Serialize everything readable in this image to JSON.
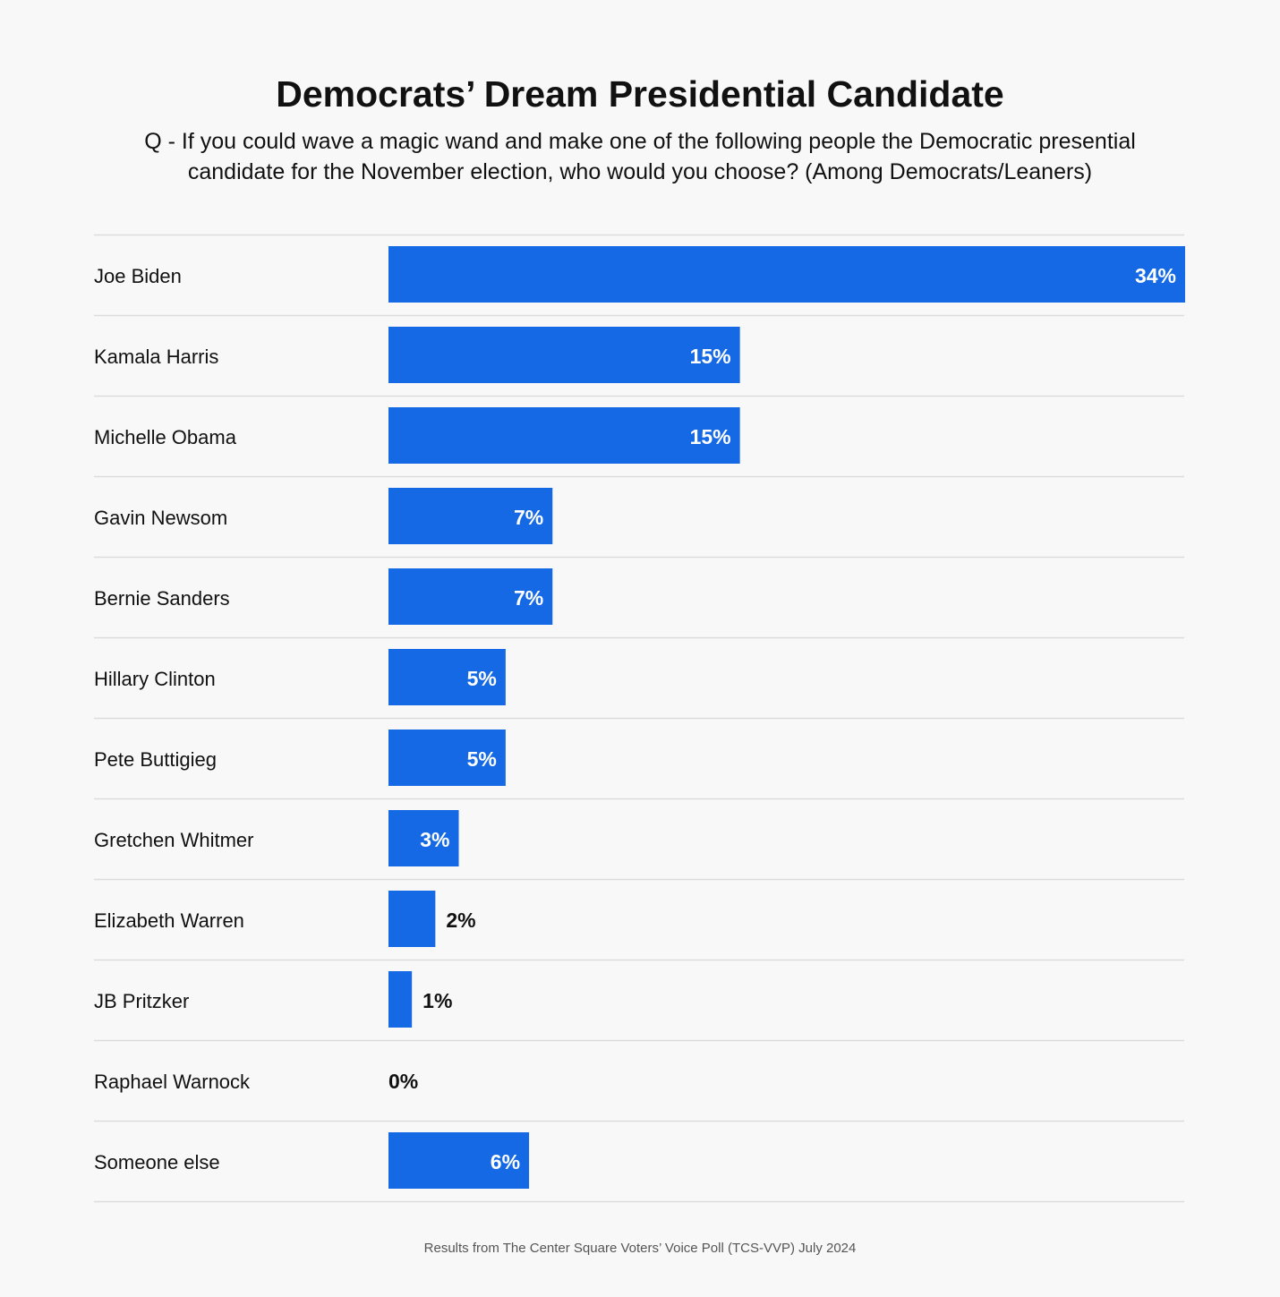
{
  "chart_data": {
    "type": "bar",
    "orientation": "horizontal",
    "title": "Democrats’ Dream Presidential Candidate",
    "subtitle": "Q - If you could wave a magic wand and make one of the following people the Democratic presential candidate for the November election, who would you choose? (Among Democrats/Leaners)",
    "categories": [
      "Joe Biden",
      "Kamala Harris",
      "Michelle Obama",
      "Gavin Newsom",
      "Bernie Sanders",
      "Hillary Clinton",
      "Pete Buttigieg",
      "Gretchen Whitmer",
      "Elizabeth Warren",
      "JB Pritzker",
      "Raphael Warnock",
      "Someone else"
    ],
    "values": [
      34,
      15,
      15,
      7,
      7,
      5,
      5,
      3,
      2,
      1,
      0,
      6
    ],
    "value_labels": [
      "34%",
      "15%",
      "15%",
      "7%",
      "7%",
      "5%",
      "5%",
      "3%",
      "2%",
      "1%",
      "0%",
      "6%"
    ],
    "unit": "%",
    "xlim": [
      0,
      34
    ],
    "grid": false,
    "legend": "none",
    "bar_color": "#1569e5",
    "footer": "Results from The Center Square Voters’ Voice Poll (TCS-VVP) July 2024"
  }
}
